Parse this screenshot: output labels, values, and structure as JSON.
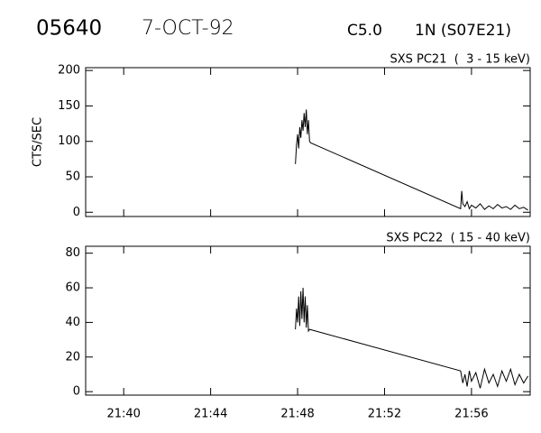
{
  "header": {
    "number": "05640",
    "date": "7-OCT-92",
    "class": "C5.0",
    "location": "1N (S07E21)"
  },
  "chart_data": [
    {
      "type": "line",
      "title": "SXS PC21  (  3 - 15 keV)",
      "y_label": "CTS/SEC",
      "color": "#000000",
      "x": [
        1307.9,
        1307.95,
        1308.0,
        1308.05,
        1308.1,
        1308.15,
        1308.2,
        1308.25,
        1308.3,
        1308.35,
        1308.4,
        1308.45,
        1308.5,
        1308.55,
        1308.6,
        1315.5,
        1315.55,
        1315.6,
        1315.7,
        1315.8,
        1315.9,
        1316.0,
        1316.2,
        1316.4,
        1316.6,
        1316.8,
        1317.0,
        1317.2,
        1317.4,
        1317.6,
        1317.8,
        1318.0,
        1318.2,
        1318.4,
        1318.6
      ],
      "values": [
        68,
        95,
        110,
        90,
        120,
        105,
        130,
        115,
        140,
        120,
        145,
        110,
        130,
        100,
        98,
        5,
        30,
        12,
        8,
        15,
        5,
        10,
        6,
        12,
        4,
        9,
        5,
        11,
        6,
        8,
        4,
        10,
        5,
        7,
        3
      ],
      "xlim": [
        1298.25,
        1318.7
      ],
      "ylim": [
        -6,
        204
      ],
      "yticks": [
        0,
        50,
        100,
        150,
        200
      ]
    },
    {
      "type": "line",
      "title": "SXS PC22  ( 15 - 40 keV)",
      "color": "#000000",
      "x": [
        1307.9,
        1307.95,
        1308.0,
        1308.05,
        1308.1,
        1308.15,
        1308.2,
        1308.25,
        1308.3,
        1308.35,
        1308.4,
        1308.45,
        1308.5,
        1308.55,
        1315.5,
        1315.6,
        1315.7,
        1315.8,
        1315.9,
        1316.0,
        1316.2,
        1316.4,
        1316.6,
        1316.8,
        1317.0,
        1317.2,
        1317.4,
        1317.6,
        1317.8,
        1318.0,
        1318.2,
        1318.4,
        1318.6
      ],
      "values": [
        36,
        48,
        40,
        55,
        38,
        58,
        42,
        60,
        40,
        55,
        37,
        50,
        35,
        36,
        12,
        5,
        10,
        3,
        12,
        6,
        11,
        2,
        13,
        5,
        10,
        3,
        12,
        6,
        13,
        4,
        10,
        5,
        9
      ],
      "xlim": [
        1298.25,
        1318.7
      ],
      "ylim": [
        -2,
        84
      ],
      "yticks": [
        0,
        20,
        40,
        60,
        80
      ],
      "xticks": [
        {
          "value": 1300,
          "label": "21:40"
        },
        {
          "value": 1304,
          "label": "21:44"
        },
        {
          "value": 1308,
          "label": "21:48"
        },
        {
          "value": 1312,
          "label": "21:52"
        },
        {
          "value": 1316,
          "label": "21:56"
        }
      ]
    }
  ]
}
